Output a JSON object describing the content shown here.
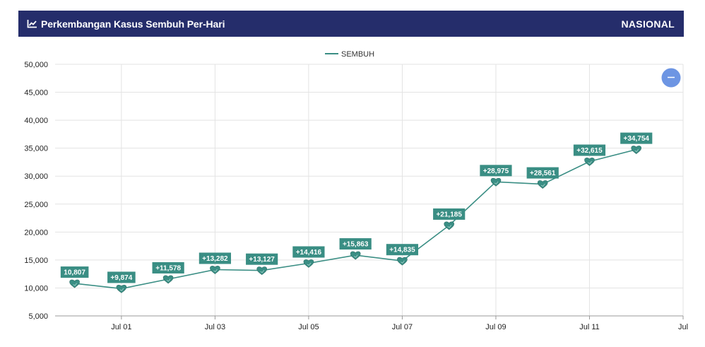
{
  "header": {
    "title": "Perkembangan Kasus Sembuh Per-Hari",
    "region": "NASIONAL",
    "icon": "line-chart-icon"
  },
  "zoom_button": {
    "icon": "minus-icon",
    "color": "#6d95e3"
  },
  "colors": {
    "header_bg": "#252d6b",
    "series": "#3a8e84",
    "label_bg": "#3a8e84",
    "grid": "#e3e3e3"
  },
  "chart_data": {
    "type": "line",
    "legend": {
      "position": "top-center",
      "entries": [
        "SEMBUH"
      ]
    },
    "series": [
      {
        "name": "SEMBUH",
        "x": [
          "2021-06-30",
          "2021-07-01",
          "2021-07-02",
          "2021-07-03",
          "2021-07-04",
          "2021-07-05",
          "2021-07-06",
          "2021-07-07",
          "2021-07-08",
          "2021-07-09",
          "2021-07-10",
          "2021-07-11",
          "2021-07-12"
        ],
        "values": [
          10807,
          9874,
          11578,
          13282,
          13127,
          14416,
          15863,
          14835,
          21185,
          28975,
          28561,
          32615,
          34754
        ],
        "labels": [
          "10,807",
          "+9,874",
          "+11,578",
          "+13,282",
          "+13,127",
          "+14,416",
          "+15,863",
          "+14,835",
          "+21,185",
          "+28,975",
          "+28,561",
          "+32,615",
          "+34,754"
        ],
        "marker": "heart-icon"
      }
    ],
    "yaxis": {
      "ylim": [
        5000,
        50000
      ],
      "ticks": [
        5000,
        10000,
        15000,
        20000,
        25000,
        30000,
        35000,
        40000,
        45000,
        50000
      ],
      "tick_labels": [
        "5,000",
        "10,000",
        "15,000",
        "20,000",
        "25,000",
        "30,000",
        "35,000",
        "40,000",
        "45,000",
        "50,000"
      ]
    },
    "xaxis": {
      "ticks": [
        "2021-07-01",
        "2021-07-03",
        "2021-07-05",
        "2021-07-07",
        "2021-07-09",
        "2021-07-11",
        "2021-07-13"
      ],
      "tick_labels": [
        "Jul 01",
        "Jul 03",
        "Jul 05",
        "Jul 07",
        "Jul 09",
        "Jul 11",
        "Jul"
      ],
      "xlim": [
        "2021-06-29T14:00",
        "2021-07-13T00:00"
      ]
    },
    "grid": true
  }
}
